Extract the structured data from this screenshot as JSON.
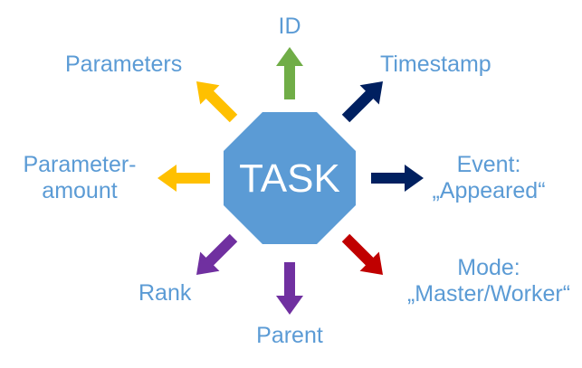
{
  "center": {
    "label": "TASK",
    "color": "#5b9bd5"
  },
  "label_color": "#5b9bd5",
  "attributes": [
    {
      "id": "id",
      "lines": [
        "ID"
      ],
      "color": "#70ad47",
      "direction": "up"
    },
    {
      "id": "timestamp",
      "lines": [
        "Timestamp"
      ],
      "color": "#002060",
      "direction": "up-right"
    },
    {
      "id": "event",
      "lines": [
        "Event:",
        "„Appeared“"
      ],
      "color": "#002060",
      "direction": "right"
    },
    {
      "id": "mode",
      "lines": [
        "Mode:",
        "„Master/Worker“"
      ],
      "color": "#c00000",
      "direction": "down-right"
    },
    {
      "id": "parent",
      "lines": [
        "Parent"
      ],
      "color": "#7030a0",
      "direction": "down"
    },
    {
      "id": "rank",
      "lines": [
        "Rank"
      ],
      "color": "#7030a0",
      "direction": "down-left"
    },
    {
      "id": "parameter-amount",
      "lines": [
        "Parameter-",
        "amount"
      ],
      "color": "#ffc000",
      "direction": "left"
    },
    {
      "id": "parameters",
      "lines": [
        "Parameters"
      ],
      "color": "#ffc000",
      "direction": "up-left"
    }
  ]
}
